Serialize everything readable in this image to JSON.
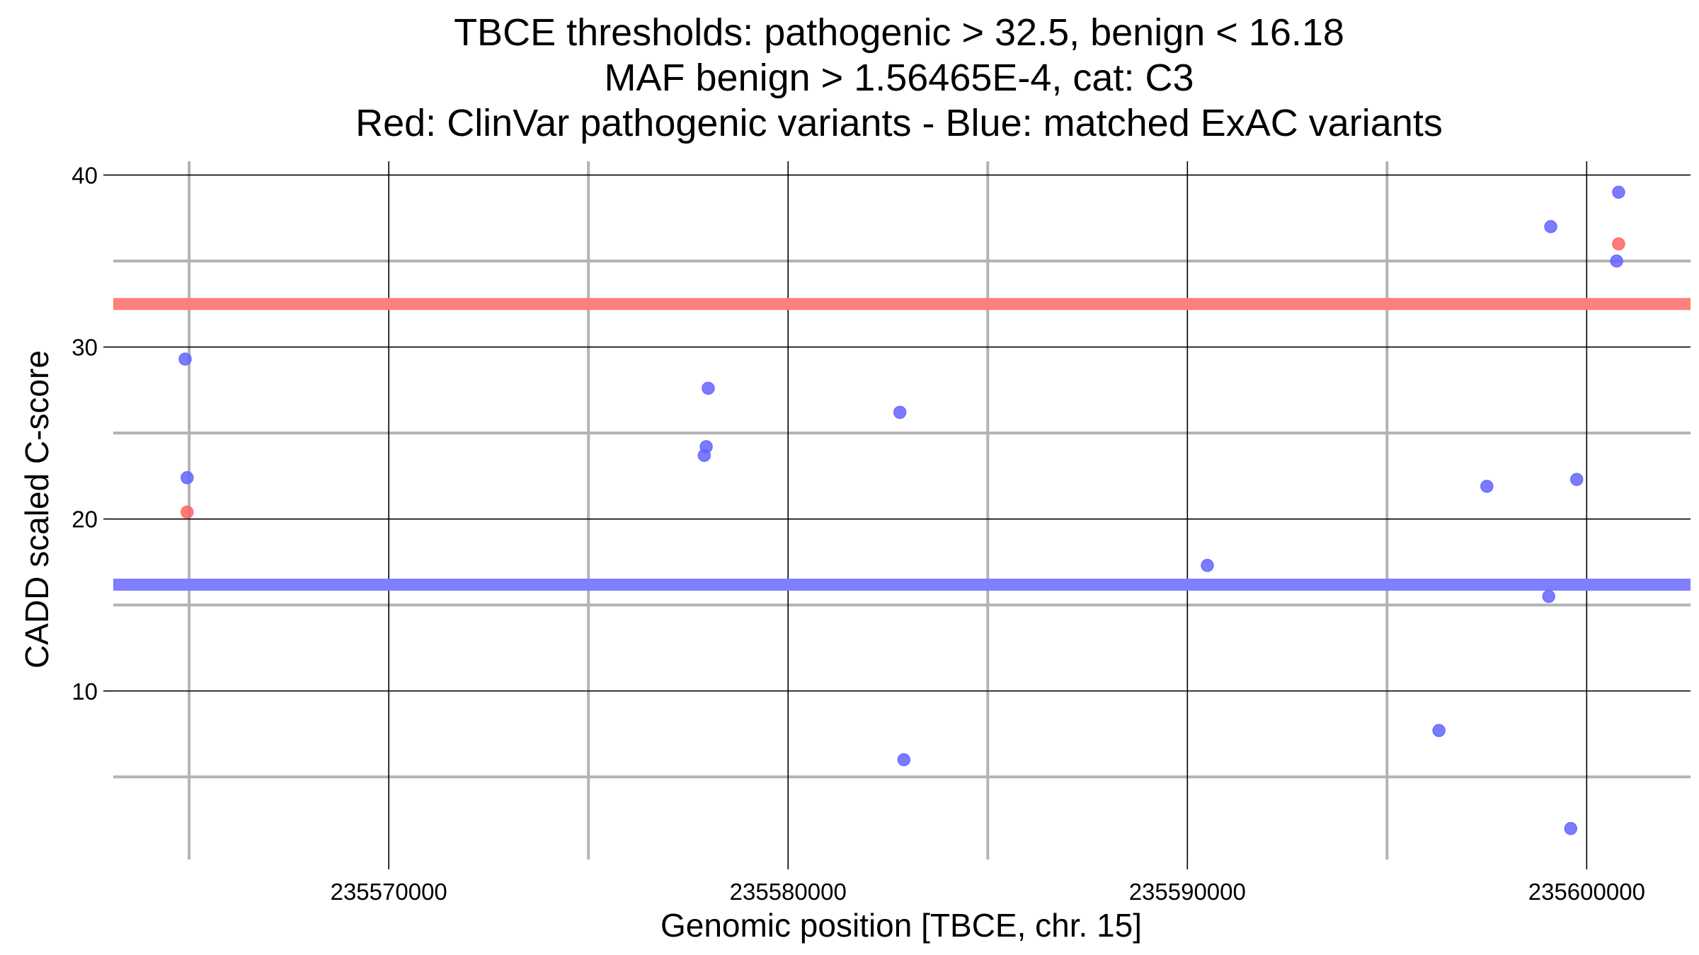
{
  "chart_data": {
    "type": "scatter",
    "title_lines": [
      "TBCE thresholds: pathogenic > 32.5, benign < 16.18",
      "MAF benign > 1.56465E-4, cat: C3",
      "Red: ClinVar pathogenic variants - Blue: matched ExAC variants"
    ],
    "xlabel": "Genomic position [TBCE, chr. 15]",
    "ylabel": "CADD scaled C-score",
    "xlim": [
      235563100,
      235602600
    ],
    "ylim": [
      0.2,
      40.8
    ],
    "x_major_ticks": [
      235570000,
      235580000,
      235590000,
      235600000
    ],
    "x_tick_labels": [
      "235570000",
      "235580000",
      "235590000",
      "235600000"
    ],
    "x_minor_ticks": [
      235565000,
      235575000,
      235585000,
      235595000
    ],
    "y_major_ticks": [
      10,
      20,
      30,
      40
    ],
    "y_tick_labels": [
      "10",
      "20",
      "30",
      "40"
    ],
    "y_minor_ticks": [
      5,
      15,
      25,
      35
    ],
    "grid": true,
    "thresholds": [
      {
        "name": "pathogenic",
        "value": 32.5,
        "color": "#ff7f7f"
      },
      {
        "name": "benign",
        "value": 16.18,
        "color": "#7f7fff"
      }
    ],
    "series": [
      {
        "name": "ClinVar pathogenic variants",
        "color": "#ff6464",
        "points": [
          [
            235564950,
            20.4
          ],
          [
            235600800,
            36.0
          ]
        ]
      },
      {
        "name": "matched ExAC variants",
        "color": "#6464ff",
        "points": [
          [
            235564900,
            29.3
          ],
          [
            235564950,
            22.4
          ],
          [
            235577900,
            23.7
          ],
          [
            235577950,
            24.2
          ],
          [
            235578000,
            27.6
          ],
          [
            235582800,
            26.2
          ],
          [
            235582900,
            6.0
          ],
          [
            235590500,
            17.3
          ],
          [
            235596300,
            7.7
          ],
          [
            235597500,
            21.9
          ],
          [
            235599100,
            37.0
          ],
          [
            235599050,
            15.5
          ],
          [
            235599600,
            2.0
          ],
          [
            235599750,
            22.3
          ],
          [
            235600750,
            35.0
          ],
          [
            235600800,
            39.0
          ]
        ]
      }
    ]
  }
}
